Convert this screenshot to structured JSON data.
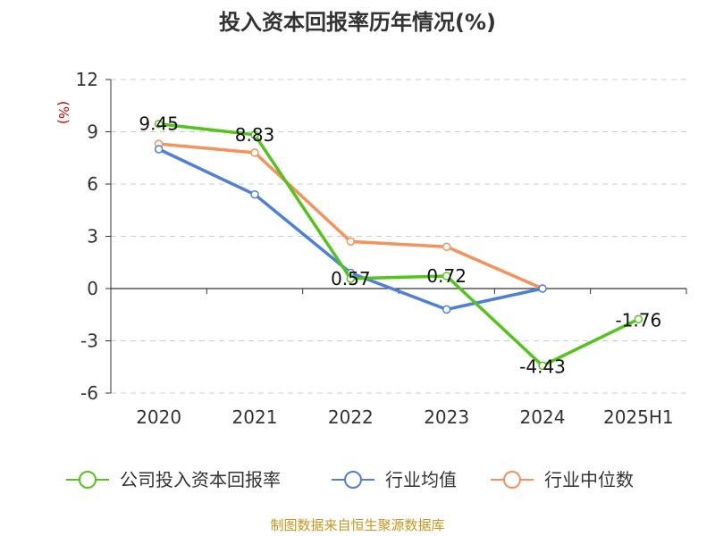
{
  "chart_data": {
    "type": "line",
    "title": "投入资本回报率历年情况(%)",
    "ylabel": "(%)",
    "categories": [
      "2020",
      "2021",
      "2022",
      "2023",
      "2024",
      "2025H1"
    ],
    "ylim": [
      -6,
      12
    ],
    "yticks": [
      12,
      9,
      6,
      3,
      0,
      -3,
      -6
    ],
    "grid": true,
    "legend_position": "bottom",
    "series": [
      {
        "name": "公司投入资本回报率",
        "color": "#52c41a",
        "values": [
          9.45,
          8.83,
          0.57,
          0.72,
          -4.43,
          -1.76
        ],
        "labels": [
          "9.45",
          "8.83",
          "0.57",
          "0.72",
          "-4.43",
          "-1.76"
        ]
      },
      {
        "name": "行业均值",
        "color": "#4e7fdb",
        "values": [
          8.0,
          5.4,
          0.9,
          -1.2,
          0.0,
          null
        ]
      },
      {
        "name": "行业中位数",
        "color": "#f5915a",
        "values": [
          8.3,
          7.8,
          2.7,
          2.4,
          0.0,
          null
        ]
      }
    ]
  },
  "source": "制图数据来自恒生聚源数据库"
}
